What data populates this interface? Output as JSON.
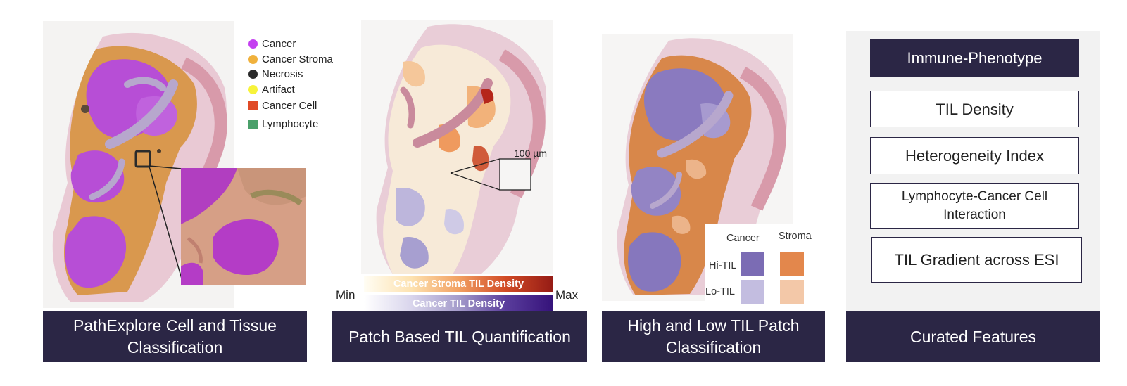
{
  "legend": {
    "items": [
      {
        "label": "Cancer",
        "color": "#c43ff0",
        "shape": "circle"
      },
      {
        "label": "Cancer Stroma",
        "color": "#f0b13c",
        "shape": "circle"
      },
      {
        "label": "Necrosis",
        "color": "#2a2a2a",
        "shape": "circle"
      },
      {
        "label": "Artifact",
        "color": "#f7f33a",
        "shape": "circle"
      },
      {
        "label": "Cancer Cell",
        "color": "#e04a26",
        "shape": "square"
      },
      {
        "label": "Lymphocyte",
        "color": "#4aa06a",
        "shape": "square"
      }
    ]
  },
  "scale_bar": "100 µm",
  "colorbars": {
    "stroma_label": "Cancer Stroma TIL Density",
    "cancer_label": "Cancer TIL Density",
    "min_label": "Min",
    "max_label": "Max"
  },
  "til_legend": {
    "col_cancer": "Cancer",
    "col_stroma": "Stroma",
    "row_hi": "Hi-TIL",
    "row_lo": "Lo-TIL",
    "colors": {
      "hi_cancer": "#7b6cb4",
      "hi_stroma": "#e3874c",
      "lo_cancer": "#c3bde0",
      "lo_stroma": "#f3c8a8"
    }
  },
  "features": {
    "immune_phenotype": "Immune-Phenotype",
    "til_density": "TIL Density",
    "heterogeneity": "Heterogeneity Index",
    "lymph_cancer": "Lymphocyte-Cancer Cell Interaction",
    "til_gradient": "TIL Gradient across ESI"
  },
  "captions": {
    "panel1": "PathExplore Cell and Tissue Classification",
    "panel2": "Patch Based TIL Quantification",
    "panel3": "High and Low TIL Patch Classification",
    "panel4": "Curated Features"
  }
}
